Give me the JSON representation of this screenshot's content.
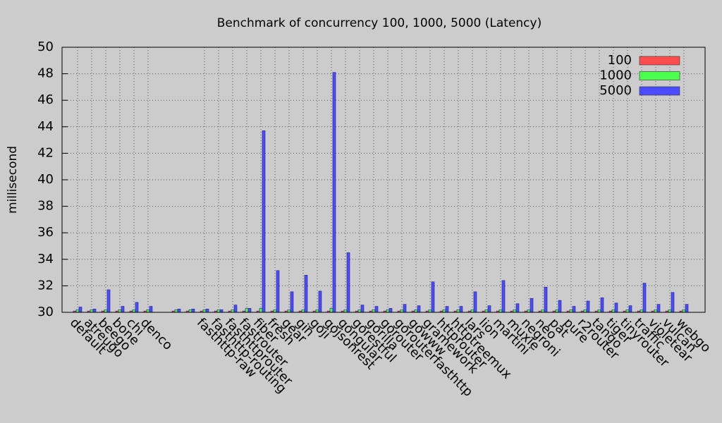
{
  "chart_data": {
    "type": "bar",
    "title": "Benchmark of concurrency 100, 1000, 5000 (Latency)",
    "y_label": "millisecond",
    "categories": [
      "default",
      "atreugo",
      "beego",
      "bone",
      "chi",
      "denco",
      null,
      null,
      null,
      "fasthttp-raw",
      "fasthttp-routing",
      "fasthttprouter",
      "fastrouter",
      "fiber",
      "fresh",
      "gear",
      "gin",
      "goji",
      "gojsonrest",
      "gongular",
      "gorestful",
      "gorilla",
      "gorouter",
      "gorouterfasthttp",
      "gowww",
      "gramework",
      "httprouter",
      "httptreemux",
      "lars",
      "lion",
      "martini",
      "muxie",
      "negroni",
      "neo",
      "pat",
      "pure",
      "r2router",
      "tango",
      "tiger",
      "tinyrouter",
      "traffic",
      "violetear",
      "vulcan",
      "webgo"
    ],
    "series": [
      {
        "name": "100",
        "color": "#ff4c4c",
        "values": [
          30.1,
          30.1,
          30.1,
          30.1,
          30.1,
          30.1,
          null,
          30.1,
          30.1,
          30.1,
          30.1,
          30.1,
          30.1,
          30.1,
          30.1,
          30.1,
          30.1,
          30.1,
          30.1,
          30.1,
          30.1,
          30.1,
          30.1,
          30.1,
          30.1,
          30.1,
          30.1,
          30.1,
          30.1,
          30.1,
          30.1,
          30.1,
          30.1,
          30.1,
          30.1,
          30.1,
          30.1,
          30.1,
          30.1,
          30.1,
          30.1,
          30.1,
          30.1,
          30.1
        ]
      },
      {
        "name": "1000",
        "color": "#4cff4c",
        "values": [
          30.2,
          30.2,
          30.2,
          30.2,
          30.2,
          30.2,
          null,
          30.2,
          30.2,
          30.2,
          30.2,
          30.2,
          30.3,
          30.3,
          30.2,
          30.2,
          30.2,
          30.2,
          30.3,
          30.2,
          30.2,
          30.2,
          30.2,
          30.2,
          30.2,
          30.2,
          30.2,
          30.2,
          30.2,
          30.2,
          30.2,
          30.2,
          30.2,
          30.2,
          30.2,
          30.2,
          30.2,
          30.2,
          30.2,
          30.2,
          30.2,
          30.2,
          30.2,
          30.2
        ]
      },
      {
        "name": "5000",
        "color": "#4c4cff",
        "values": [
          30.4,
          30.25,
          31.7,
          30.45,
          30.75,
          30.45,
          null,
          30.25,
          30.25,
          30.25,
          30.2,
          30.55,
          30.3,
          43.7,
          33.15,
          31.55,
          32.8,
          31.6,
          48.1,
          34.5,
          30.55,
          30.45,
          30.3,
          30.6,
          30.5,
          32.3,
          30.45,
          30.45,
          31.55,
          30.5,
          32.4,
          30.65,
          31.05,
          31.9,
          30.9,
          30.45,
          30.85,
          31.1,
          30.7,
          30.5,
          32.2,
          30.6,
          31.5,
          30.6
        ]
      }
    ],
    "ylim": [
      30,
      50
    ],
    "yticks": [
      30,
      32,
      34,
      36,
      38,
      40,
      42,
      44,
      46,
      48,
      50
    ],
    "grid": true,
    "legend": "top-right"
  }
}
